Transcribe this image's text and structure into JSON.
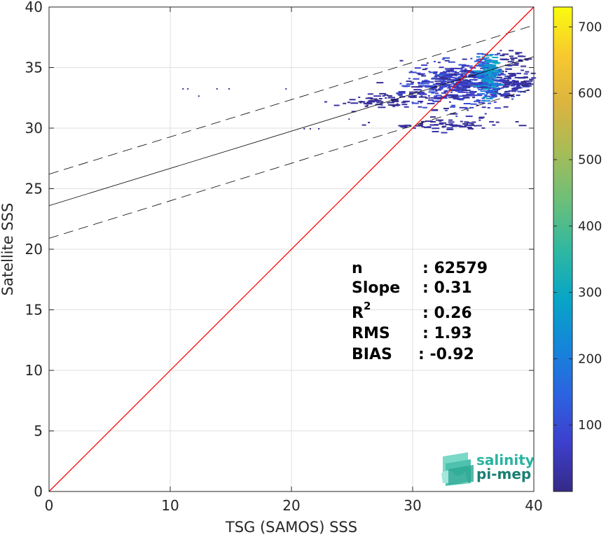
{
  "chart_data": {
    "type": "scatter",
    "subtype": "density-scatter",
    "xlabel": "TSG (SAMOS) SSS",
    "ylabel": "Satellite SSS",
    "xlim": [
      0,
      40
    ],
    "ylim": [
      0,
      40
    ],
    "x_ticks": [
      0,
      10,
      20,
      30,
      40
    ],
    "y_ticks": [
      0,
      5,
      10,
      15,
      20,
      25,
      30,
      35,
      40
    ],
    "grid": true,
    "colorbar": {
      "range": [
        0,
        730
      ],
      "ticks": [
        100,
        200,
        300,
        400,
        500,
        600,
        700
      ],
      "colormap": "parula"
    },
    "one_to_one_line": {
      "color": "#ff0000",
      "x": [
        0,
        40
      ],
      "y": [
        0,
        40
      ]
    },
    "regression_line": {
      "color": "#000000",
      "style": "solid",
      "x": [
        0,
        40
      ],
      "y": [
        23.6,
        35.9
      ]
    },
    "upper_bound_line": {
      "color": "#000000",
      "style": "dashed",
      "x": [
        0,
        40
      ],
      "y": [
        26.2,
        38.5
      ]
    },
    "lower_bound_line": {
      "color": "#000000",
      "style": "dashed",
      "x": [
        0,
        40
      ],
      "y": [
        20.9,
        33.3
      ]
    },
    "stats": [
      {
        "label": "n",
        "value": ": 62579"
      },
      {
        "label": "Slope",
        "value": ": 0.31"
      },
      {
        "label": "R",
        "sup": "2",
        "value": ": 0.26"
      },
      {
        "label": "RMS",
        "value": ": 1.93"
      },
      {
        "label": "BIAS",
        "value": ": -0.92"
      }
    ],
    "density_clusters": [
      {
        "x": 34.0,
        "y": 33.6,
        "sx": 2.4,
        "sy": 0.9,
        "n": 520,
        "cmin": 5,
        "cmax": 120
      },
      {
        "x": 36.0,
        "y": 34.4,
        "sx": 0.45,
        "sy": 0.8,
        "n": 180,
        "cmin": 100,
        "cmax": 320
      },
      {
        "x": 36.3,
        "y": 35.0,
        "sx": 0.25,
        "sy": 0.5,
        "n": 40,
        "cmin": 200,
        "cmax": 330
      },
      {
        "x": 27.5,
        "y": 32.3,
        "sx": 2.0,
        "sy": 0.3,
        "n": 70,
        "cmin": 3,
        "cmax": 40
      },
      {
        "x": 32.5,
        "y": 30.3,
        "sx": 2.6,
        "sy": 0.25,
        "n": 70,
        "cmin": 3,
        "cmax": 40
      },
      {
        "x": 38.5,
        "y": 33.8,
        "sx": 0.8,
        "sy": 0.5,
        "n": 60,
        "cmin": 3,
        "cmax": 60
      },
      {
        "x": 38.2,
        "y": 35.8,
        "sx": 0.7,
        "sy": 0.35,
        "n": 25,
        "cmin": 3,
        "cmax": 30
      }
    ],
    "outlier_points": [
      [
        11.0,
        33.3
      ],
      [
        11.4,
        33.3
      ],
      [
        12.3,
        32.7
      ],
      [
        13.8,
        33.3
      ],
      [
        14.8,
        33.3
      ],
      [
        19.5,
        33.3
      ],
      [
        21.0,
        30.0
      ],
      [
        21.5,
        30.0
      ],
      [
        22.2,
        30.0
      ],
      [
        24.7,
        30.8
      ]
    ]
  },
  "logo": {
    "line1": "salinity",
    "line2": "pi-mep",
    "color1": "#2bb3a0",
    "color2": "#1a7e72"
  }
}
